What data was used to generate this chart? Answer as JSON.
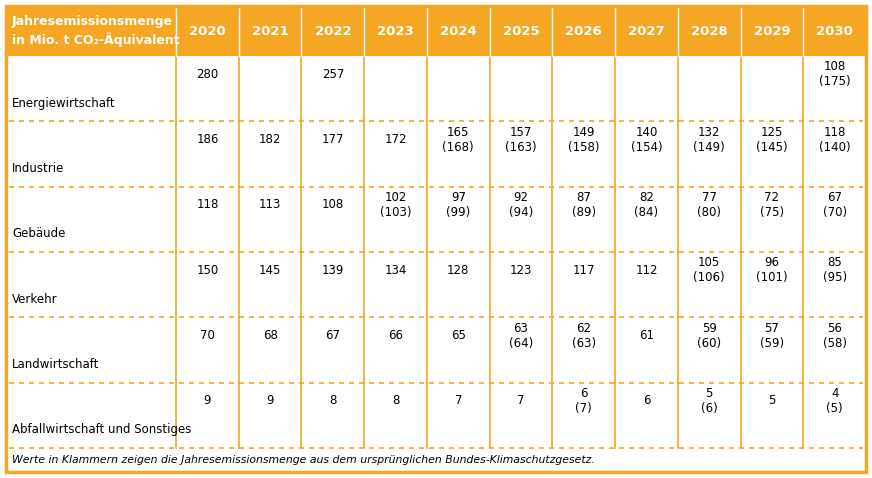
{
  "header_label_line1": "Jahresemissionsmenge",
  "header_label_line2": "in Mio. t CO₂-Äquivalent",
  "years": [
    "2020",
    "2021",
    "2022",
    "2023",
    "2024",
    "2025",
    "2026",
    "2027",
    "2028",
    "2029",
    "2030"
  ],
  "header_bg": "#F5A623",
  "header_text_color": "#FFFFFF",
  "body_bg": "#FFFFFF",
  "border_color": "#F5A623",
  "dotted_line_color": "#F5A623",
  "solid_line_color": "#F5A623",
  "footer_text": "Werte in Klammern zeigen die Jahresemissionsmenge aus dem ursprünglichen Bundes-Klimaschutzgesetz.",
  "rows": [
    {
      "label": "Energiewirtschaft",
      "values": [
        "280",
        "",
        "257",
        "",
        "",
        "",
        "",
        "",
        "",
        "",
        "108\n(175)"
      ]
    },
    {
      "label": "Industrie",
      "values": [
        "186",
        "182",
        "177",
        "172",
        "165\n(168)",
        "157\n(163)",
        "149\n(158)",
        "140\n(154)",
        "132\n(149)",
        "125\n(145)",
        "118\n(140)"
      ]
    },
    {
      "label": "Gebäude",
      "values": [
        "118",
        "113",
        "108",
        "102\n(103)",
        "97\n(99)",
        "92\n(94)",
        "87\n(89)",
        "82\n(84)",
        "77\n(80)",
        "72\n(75)",
        "67\n(70)"
      ]
    },
    {
      "label": "Verkehr",
      "values": [
        "150",
        "145",
        "139",
        "134",
        "128",
        "123",
        "117",
        "112",
        "105\n(106)",
        "96\n(101)",
        "85\n(95)"
      ]
    },
    {
      "label": "Landwirtschaft",
      "values": [
        "70",
        "68",
        "67",
        "66",
        "65",
        "63\n(64)",
        "62\n(63)",
        "61",
        "59\n(60)",
        "57\n(59)",
        "56\n(58)"
      ]
    },
    {
      "label": "Abfallwirtschaft und Sonstiges",
      "values": [
        "9",
        "9",
        "8",
        "8",
        "7",
        "7",
        "6\n(7)",
        "6",
        "5\n(6)",
        "5",
        "4\n(5)"
      ]
    }
  ]
}
